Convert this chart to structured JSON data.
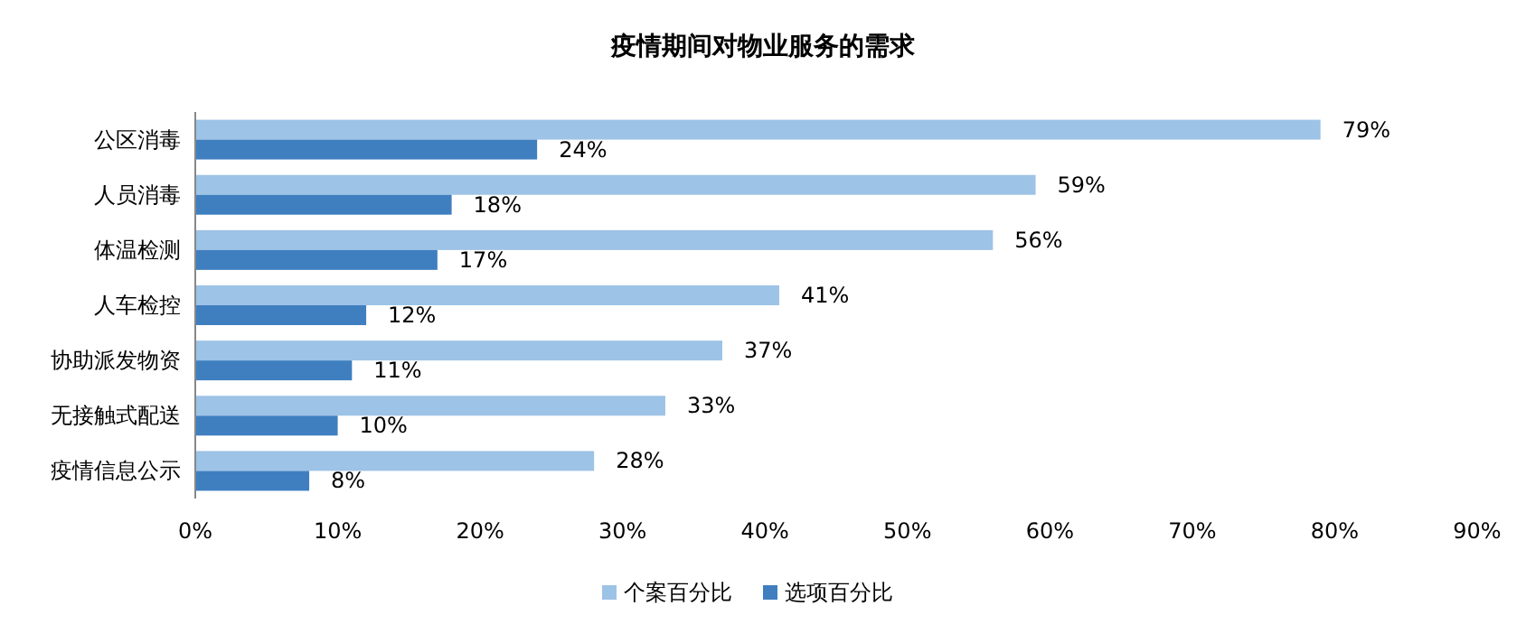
{
  "chart_data": {
    "type": "bar",
    "orientation": "horizontal",
    "title": "疫情期间对物业服务的需求",
    "categories": [
      "公区消毒",
      "人员消毒",
      "体温检测",
      "人车检控",
      "协助派发物资",
      "无接触式配送",
      "疫情信息公示"
    ],
    "series": [
      {
        "name": "个案百分比",
        "color": "#9dc3e6",
        "values": [
          79,
          59,
          56,
          41,
          37,
          33,
          28
        ],
        "value_labels": [
          "79%",
          "59%",
          "56%",
          "41%",
          "37%",
          "33%",
          "28%"
        ]
      },
      {
        "name": "选项百分比",
        "color": "#3f7fc0",
        "values": [
          24,
          18,
          17,
          12,
          11,
          10,
          8
        ],
        "value_labels": [
          "24%",
          "18%",
          "17%",
          "12%",
          "11%",
          "10%",
          "8%"
        ]
      }
    ],
    "xlim": [
      0,
      90
    ],
    "xticks": [
      {
        "value": 0,
        "label": "0%"
      },
      {
        "value": 10,
        "label": "10%"
      },
      {
        "value": 20,
        "label": "20%"
      },
      {
        "value": 30,
        "label": "30%"
      },
      {
        "value": 40,
        "label": "40%"
      },
      {
        "value": 50,
        "label": "50%"
      },
      {
        "value": 60,
        "label": "60%"
      },
      {
        "value": 70,
        "label": "70%"
      },
      {
        "value": 80,
        "label": "80%"
      },
      {
        "value": 90,
        "label": "90%"
      }
    ],
    "legend": "bottom"
  }
}
